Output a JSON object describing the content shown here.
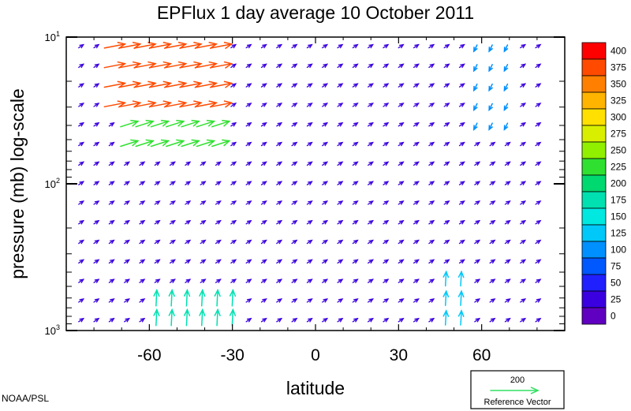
{
  "chart_data": {
    "type": "quiver",
    "title": "EPFlux  1 day average  10 October   2011",
    "xlabel": "latitude",
    "ylabel": "pressure (mb)  log-scale",
    "xlim": [
      -90,
      90
    ],
    "ylim": [
      1000,
      10
    ],
    "yscale": "log",
    "x_ticks": [
      -60,
      -30,
      0,
      30,
      60
    ],
    "x_tick_labels": [
      "-60",
      "-30",
      "0",
      "30",
      "60"
    ],
    "y_ticks": [
      10,
      100,
      1000
    ],
    "y_tick_labels": [
      {
        "base": "10",
        "exp": "1"
      },
      {
        "base": "10",
        "exp": "2"
      },
      {
        "base": "10",
        "exp": "3"
      }
    ],
    "colorbar": {
      "levels": [
        "400",
        "375",
        "350",
        "325",
        "300",
        "275",
        "250",
        "225",
        "200",
        "175",
        "150",
        "125",
        "100",
        "75",
        "50",
        "25",
        "0"
      ],
      "colors": [
        "#ff0000",
        "#ff4a00",
        "#ff8000",
        "#ffb400",
        "#ffe000",
        "#d8f000",
        "#90f000",
        "#30e030",
        "#00d870",
        "#00e0b0",
        "#00e8e0",
        "#00c8f8",
        "#0090ff",
        "#0058ff",
        "#2020ff",
        "#3a00e0",
        "#6000c0"
      ]
    },
    "reference_vector": {
      "magnitude": "200",
      "label": "Reference Vector",
      "color": "#30e060"
    },
    "credit": "NOAA/PSL",
    "regions": [
      {
        "name": "southern-jet-upper",
        "lat": [
          -75,
          -35
        ],
        "p": [
          10,
          30
        ],
        "dx": 26,
        "dy": -5,
        "magnitude": 390
      },
      {
        "name": "southern-jet-mid",
        "lat": [
          -72,
          -35
        ],
        "p": [
          30,
          70
        ],
        "dx": 22,
        "dy": -7,
        "magnitude": 240
      },
      {
        "name": "southern-surface",
        "lat": [
          -60,
          -30
        ],
        "p": [
          500,
          1000
        ],
        "dx": 1,
        "dy": -20,
        "magnitude": 180
      },
      {
        "name": "northern-surface",
        "lat": [
          45,
          55
        ],
        "p": [
          400,
          1000
        ],
        "dx": 1,
        "dy": -18,
        "magnitude": 130
      },
      {
        "name": "northern-upper",
        "lat": [
          55,
          70
        ],
        "p": [
          10,
          40
        ],
        "dx": -4,
        "dy": 8,
        "magnitude": 120
      },
      {
        "name": "background",
        "lat": [
          -90,
          90
        ],
        "p": [
          10,
          1000
        ],
        "dx": 6,
        "dy": -4,
        "magnitude": 40
      }
    ]
  }
}
